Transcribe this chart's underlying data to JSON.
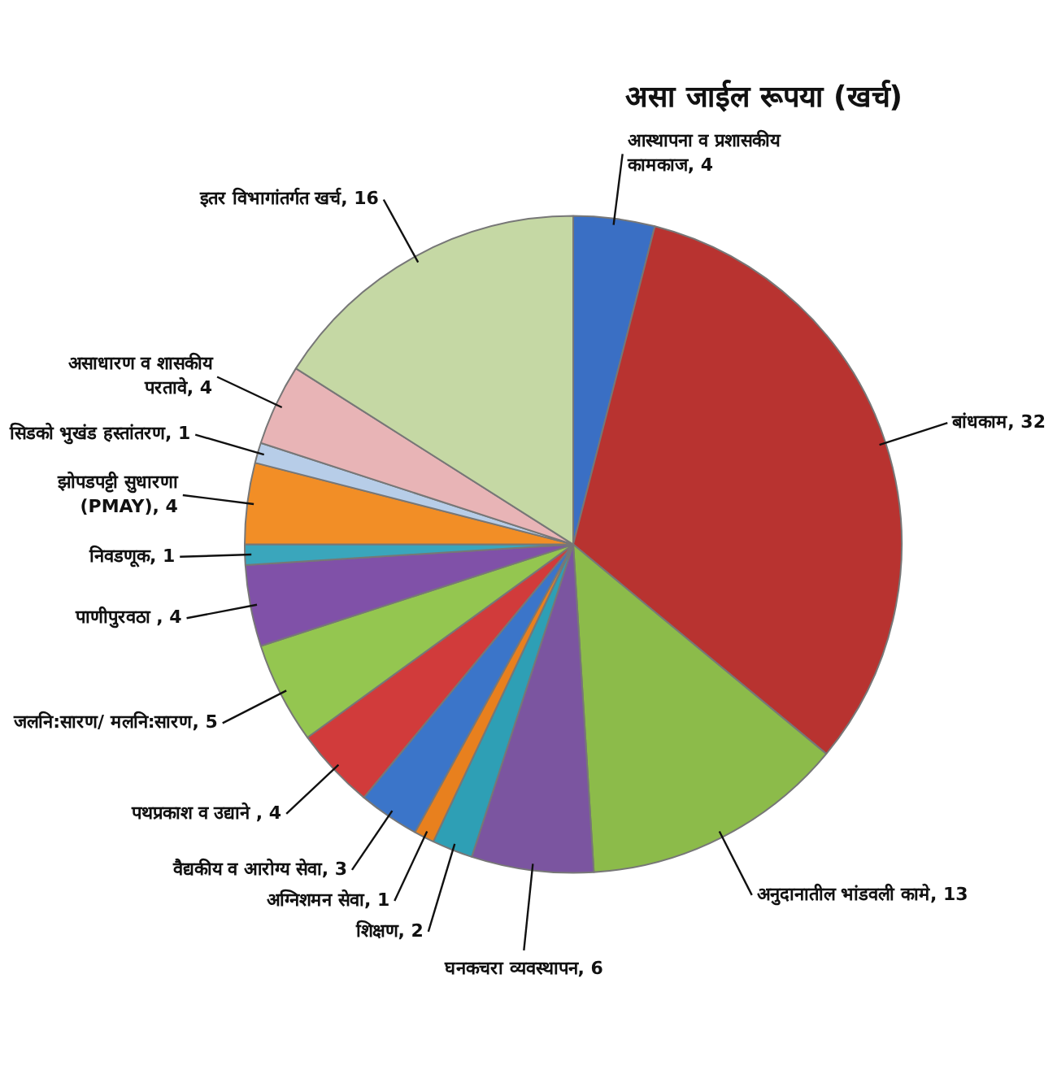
{
  "chart_data": {
    "type": "pie",
    "title": "असा जाईल रूपया (खर्च)",
    "categories": [
      "आस्थापना व प्रशासकीय कामकाज",
      "बांधकाम",
      "अनुदानातील भांडवली कामे",
      "घनकचरा व्यवस्थापन",
      "शिक्षण",
      "अग्निशमन सेवा",
      "वैद्यकीय व आरोग्य सेवा",
      "पथप्रकाश व उद्याने",
      "जलनि:सारण/ मलनि:सारण",
      "पाणीपुरवठा",
      "निवडणूक",
      "झोपडपट्टी सुधारणा (PMAY)",
      "सिडको भुखंड हस्तांतरण",
      "असाधारण व शासकीय परतावे",
      "इतर विभागांतर्गत खर्च"
    ],
    "values": [
      4,
      32,
      13,
      6,
      2,
      1,
      3,
      4,
      5,
      4,
      1,
      4,
      1,
      4,
      16
    ],
    "value_labels": [
      ", 4",
      ", 32",
      ", 13",
      ", 6",
      ", 2",
      ", 1",
      ", 3",
      " , 4",
      ", 5",
      " , 4",
      ", 1",
      ", 4",
      ", 1",
      ", 4",
      ", 16"
    ],
    "colors": [
      "#3a6fc4",
      "#b83330",
      "#8cbb4a",
      "#7b55a0",
      "#2e9fb5",
      "#e8801e",
      "#3b75c9",
      "#d13b3b",
      "#94c650",
      "#8051a8",
      "#3aa6bc",
      "#f28e26",
      "#b7cde8",
      "#e8b4b6",
      "#c5d8a4"
    ],
    "legend": false
  }
}
